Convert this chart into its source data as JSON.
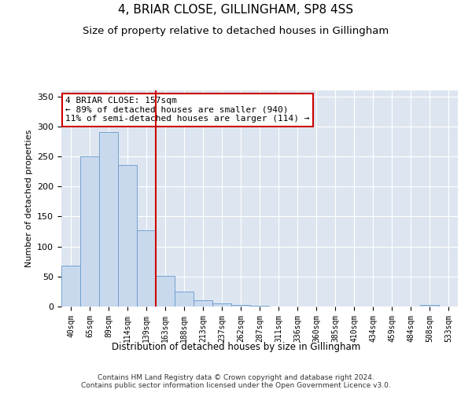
{
  "title": "4, BRIAR CLOSE, GILLINGHAM, SP8 4SS",
  "subtitle": "Size of property relative to detached houses in Gillingham",
  "xlabel": "Distribution of detached houses by size in Gillingham",
  "ylabel": "Number of detached properties",
  "categories": [
    "40sqm",
    "65sqm",
    "89sqm",
    "114sqm",
    "139sqm",
    "163sqm",
    "188sqm",
    "213sqm",
    "237sqm",
    "262sqm",
    "287sqm",
    "311sqm",
    "336sqm",
    "360sqm",
    "385sqm",
    "410sqm",
    "434sqm",
    "459sqm",
    "484sqm",
    "508sqm",
    "533sqm"
  ],
  "values": [
    68,
    250,
    290,
    236,
    127,
    51,
    25,
    10,
    5,
    2,
    1,
    0,
    0,
    0,
    0,
    0,
    0,
    0,
    0,
    3,
    0
  ],
  "bar_color": "#c9d9ed",
  "bar_edge_color": "#6699cc",
  "property_line_x": 4.5,
  "property_line_color": "#cc0000",
  "annotation_text": "4 BRIAR CLOSE: 157sqm\n← 89% of detached houses are smaller (940)\n11% of semi-detached houses are larger (114) →",
  "annotation_box_color": "#cc0000",
  "ylim": [
    0,
    360
  ],
  "yticks": [
    0,
    50,
    100,
    150,
    200,
    250,
    300,
    350
  ],
  "background_color": "#dde6f0",
  "footer_text": "Contains HM Land Registry data © Crown copyright and database right 2024.\nContains public sector information licensed under the Open Government Licence v3.0.",
  "title_fontsize": 11,
  "subtitle_fontsize": 9.5,
  "xlabel_fontsize": 8.5,
  "ylabel_fontsize": 8,
  "annotation_fontsize": 8,
  "footer_fontsize": 6.5,
  "tick_fontsize": 7
}
